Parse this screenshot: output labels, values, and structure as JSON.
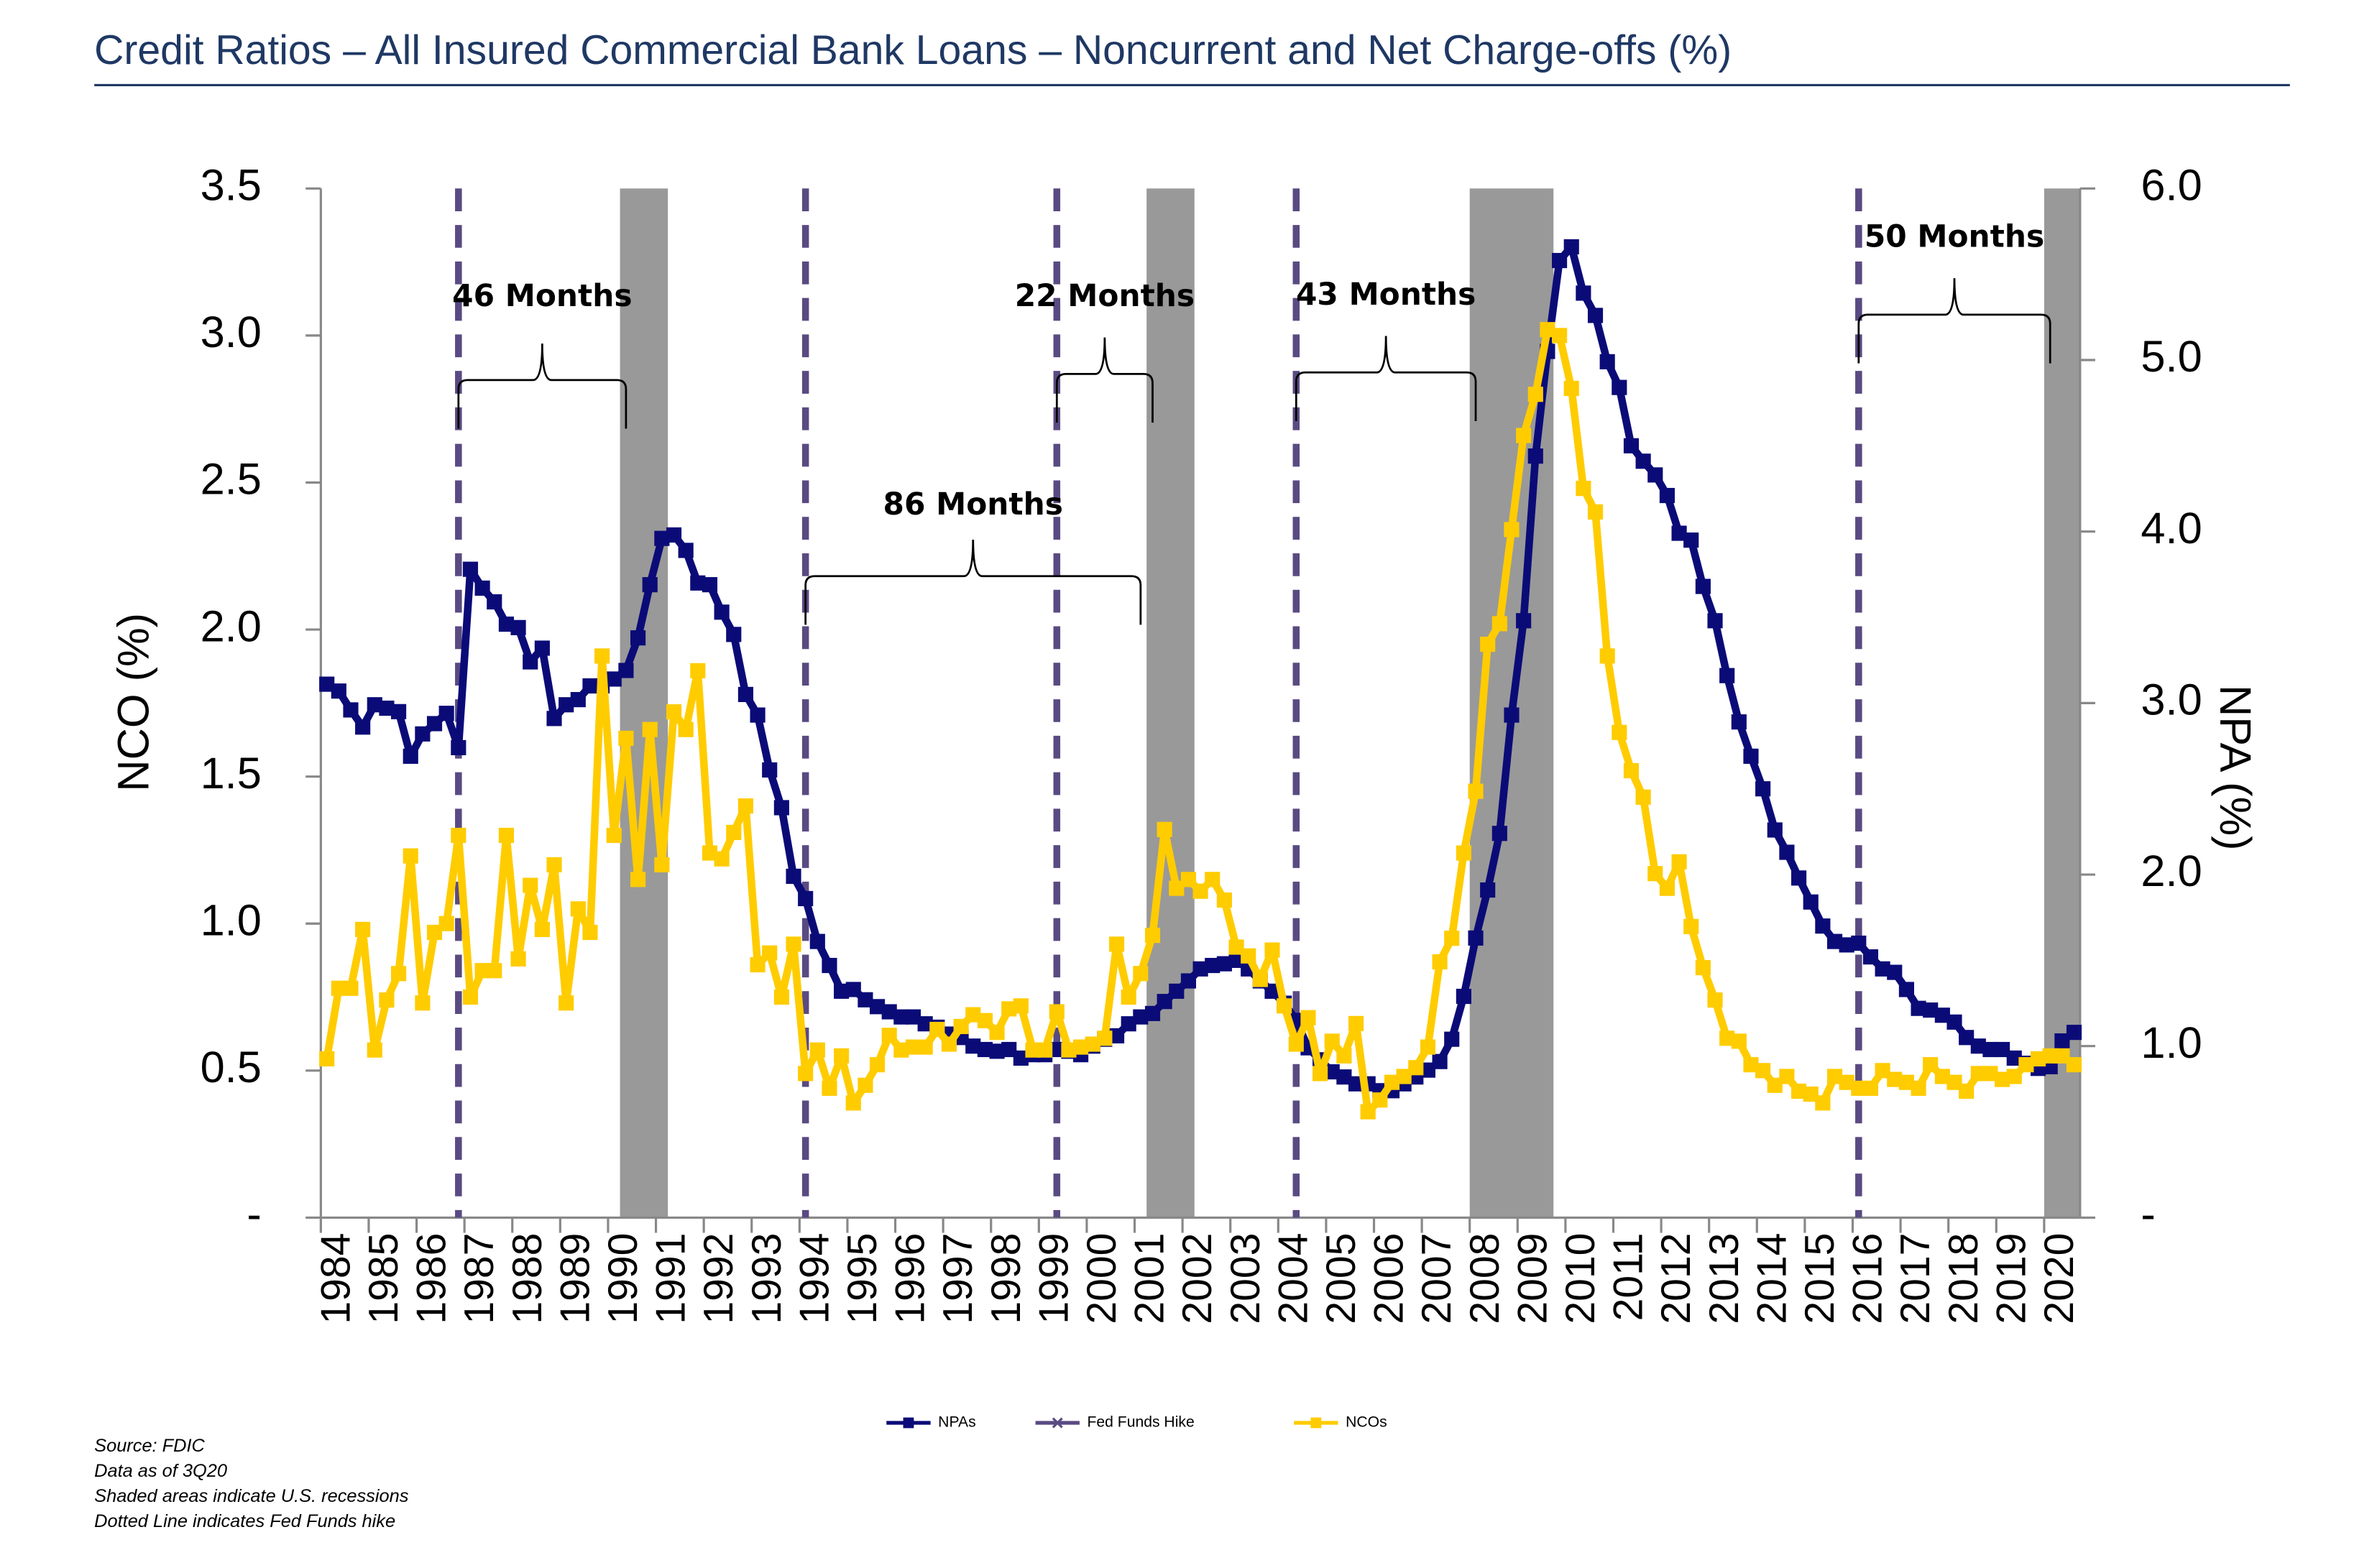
{
  "chart_data": {
    "type": "line",
    "title": "Credit Ratios – All Insured Commercial Bank Loans – Noncurrent and Net Charge-offs (%)",
    "ylabel": "NCO (%)",
    "y2label": "NPA (%)",
    "ylim": [
      0,
      3.5
    ],
    "yticks": [
      {
        "value": 0,
        "label": "-"
      },
      0.5,
      {
        "value": 1,
        "label": "1.0"
      },
      1.5,
      {
        "value": 2,
        "label": "2.0"
      },
      2.5,
      {
        "value": 3,
        "label": "3.0"
      },
      3.5
    ],
    "y2lim": [
      0,
      6
    ],
    "y2ticks": [
      {
        "value": 0,
        "label": "-"
      },
      {
        "value": 1,
        "label": "1.0"
      },
      {
        "value": 2,
        "label": "2.0"
      },
      {
        "value": 3,
        "label": "3.0"
      },
      {
        "value": 4,
        "label": "4.0"
      },
      {
        "value": 5,
        "label": "5.0"
      },
      {
        "value": 6,
        "label": "6.0"
      }
    ],
    "categories": [
      null,
      "1984",
      null,
      null,
      null,
      "1985",
      null,
      null,
      null,
      "1986",
      null,
      null,
      null,
      "1987",
      null,
      null,
      null,
      "1988",
      null,
      null,
      null,
      "1989",
      null,
      null,
      null,
      "1990",
      null,
      null,
      null,
      "1991",
      null,
      null,
      null,
      "1992",
      null,
      null,
      null,
      "1993",
      null,
      null,
      null,
      "1994",
      null,
      null,
      null,
      "1995",
      null,
      null,
      null,
      "1996",
      null,
      null,
      null,
      "1997",
      null,
      null,
      null,
      "1998",
      null,
      null,
      null,
      "1999",
      null,
      null,
      null,
      "2000",
      null,
      null,
      null,
      "2001",
      null,
      null,
      null,
      "2002",
      null,
      null,
      null,
      "2003",
      null,
      null,
      null,
      "2004",
      null,
      null,
      null,
      "2005",
      null,
      null,
      null,
      "2006",
      null,
      null,
      null,
      "2007",
      null,
      null,
      null,
      "2008",
      null,
      null,
      null,
      "2009",
      null,
      null,
      null,
      "2010",
      null,
      null,
      null,
      "2011",
      null,
      null,
      null,
      "2012",
      null,
      null,
      null,
      "2013",
      null,
      null,
      null,
      "2014",
      null,
      null,
      null,
      "2015",
      null,
      null,
      null,
      "2016",
      null,
      null,
      null,
      "2017",
      null,
      null,
      null,
      "2018",
      null,
      null,
      null,
      "2019",
      null,
      null,
      null,
      "2020",
      null
    ],
    "series": [
      {
        "name": "NPAs",
        "color": "#0b0b78",
        "axis": "y2",
        "values": [
          3.11,
          3.07,
          2.96,
          2.86,
          2.99,
          2.97,
          2.95,
          2.69,
          2.82,
          2.88,
          2.94,
          2.74,
          3.78,
          3.67,
          3.59,
          3.46,
          3.44,
          3.24,
          3.32,
          2.91,
          2.99,
          3.02,
          3.1,
          3.1,
          3.14,
          3.19,
          3.38,
          3.69,
          3.96,
          3.98,
          3.89,
          3.7,
          3.69,
          3.53,
          3.4,
          3.05,
          2.93,
          2.61,
          2.39,
          1.99,
          1.86,
          1.61,
          1.47,
          1.32,
          1.33,
          1.27,
          1.23,
          1.2,
          1.17,
          1.17,
          1.13,
          1.11,
          1.07,
          1.05,
          1.0,
          0.98,
          0.97,
          0.98,
          0.93,
          0.95,
          0.95,
          0.98,
          0.97,
          0.95,
          1.0,
          1.04,
          1.06,
          1.13,
          1.17,
          1.19,
          1.26,
          1.32,
          1.38,
          1.45,
          1.47,
          1.48,
          1.5,
          1.45,
          1.38,
          1.32,
          1.25,
          1.15,
          0.99,
          0.92,
          0.85,
          0.82,
          0.78,
          0.78,
          0.74,
          0.74,
          0.78,
          0.82,
          0.86,
          0.91,
          1.04,
          1.29,
          1.63,
          1.91,
          2.24,
          2.93,
          3.48,
          4.44,
          5.05,
          5.58,
          5.66,
          5.39,
          5.26,
          4.99,
          4.84,
          4.5,
          4.41,
          4.33,
          4.21,
          3.99,
          3.95,
          3.68,
          3.48,
          3.16,
          2.89,
          2.69,
          2.5,
          2.26,
          2.13,
          1.98,
          1.84,
          1.7,
          1.61,
          1.59,
          1.6,
          1.52,
          1.45,
          1.43,
          1.33,
          1.22,
          1.21,
          1.18,
          1.14,
          1.05,
          1.0,
          0.98,
          0.98,
          0.93,
          0.9,
          0.87,
          0.88,
          1.03,
          1.08
        ]
      },
      {
        "name": "NCOs",
        "color": "#ffcc00",
        "values": [
          0.54,
          0.78,
          0.78,
          0.98,
          0.57,
          0.74,
          0.83,
          1.23,
          0.73,
          0.97,
          1.0,
          1.3,
          0.75,
          0.84,
          0.84,
          1.3,
          0.88,
          1.13,
          0.98,
          1.2,
          0.73,
          1.05,
          0.97,
          1.91,
          1.3,
          1.63,
          1.15,
          1.66,
          1.2,
          1.72,
          1.66,
          1.86,
          1.24,
          1.22,
          1.31,
          1.4,
          0.86,
          0.9,
          0.75,
          0.93,
          0.49,
          0.57,
          0.44,
          0.55,
          0.39,
          0.45,
          0.52,
          0.62,
          0.57,
          0.58,
          0.58,
          0.64,
          0.59,
          0.65,
          0.69,
          0.67,
          0.63,
          0.71,
          0.72,
          0.57,
          0.57,
          0.7,
          0.57,
          0.58,
          0.59,
          0.61,
          0.93,
          0.75,
          0.83,
          0.96,
          1.32,
          1.12,
          1.15,
          1.11,
          1.15,
          1.08,
          0.92,
          0.89,
          0.81,
          0.91,
          0.72,
          0.59,
          0.68,
          0.49,
          0.6,
          0.55,
          0.66,
          0.36,
          0.4,
          0.46,
          0.48,
          0.51,
          0.58,
          0.87,
          0.95,
          1.24,
          1.45,
          1.95,
          2.02,
          2.34,
          2.66,
          2.8,
          3.02,
          3.0,
          2.82,
          2.48,
          2.4,
          1.91,
          1.65,
          1.52,
          1.43,
          1.17,
          1.12,
          1.21,
          0.99,
          0.85,
          0.74,
          0.61,
          0.6,
          0.52,
          0.5,
          0.45,
          0.48,
          0.43,
          0.42,
          0.39,
          0.48,
          0.46,
          0.44,
          0.44,
          0.5,
          0.47,
          0.46,
          0.44,
          0.52,
          0.48,
          0.46,
          0.43,
          0.49,
          0.49,
          0.47,
          0.48,
          0.52,
          0.54,
          0.55,
          0.55,
          0.52
        ]
      }
    ],
    "fed_funds_hike": {
      "name": "Fed Funds Hike",
      "color": "#5a4a82",
      "dates": [
        11,
        40,
        61,
        81,
        128
      ]
    },
    "recessions": [
      [
        25,
        28
      ],
      [
        69,
        72
      ],
      [
        96,
        102
      ],
      [
        144,
        146
      ]
    ],
    "annotations": [
      {
        "text": "46 Months",
        "start": 11,
        "end": 25
      },
      {
        "text": "86 Months",
        "start": 40,
        "end": 68
      },
      {
        "text": "22 Months",
        "start": 61,
        "end": 69
      },
      {
        "text": "43 Months",
        "start": 81,
        "end": 96
      },
      {
        "text": "50 Months",
        "start": 128,
        "end": 144
      }
    ],
    "notes": [
      "Source: FDIC",
      "Data as of 3Q20",
      "Shaded areas indicate U.S. recessions",
      "Dotted Line indicates Fed Funds hike"
    ]
  }
}
